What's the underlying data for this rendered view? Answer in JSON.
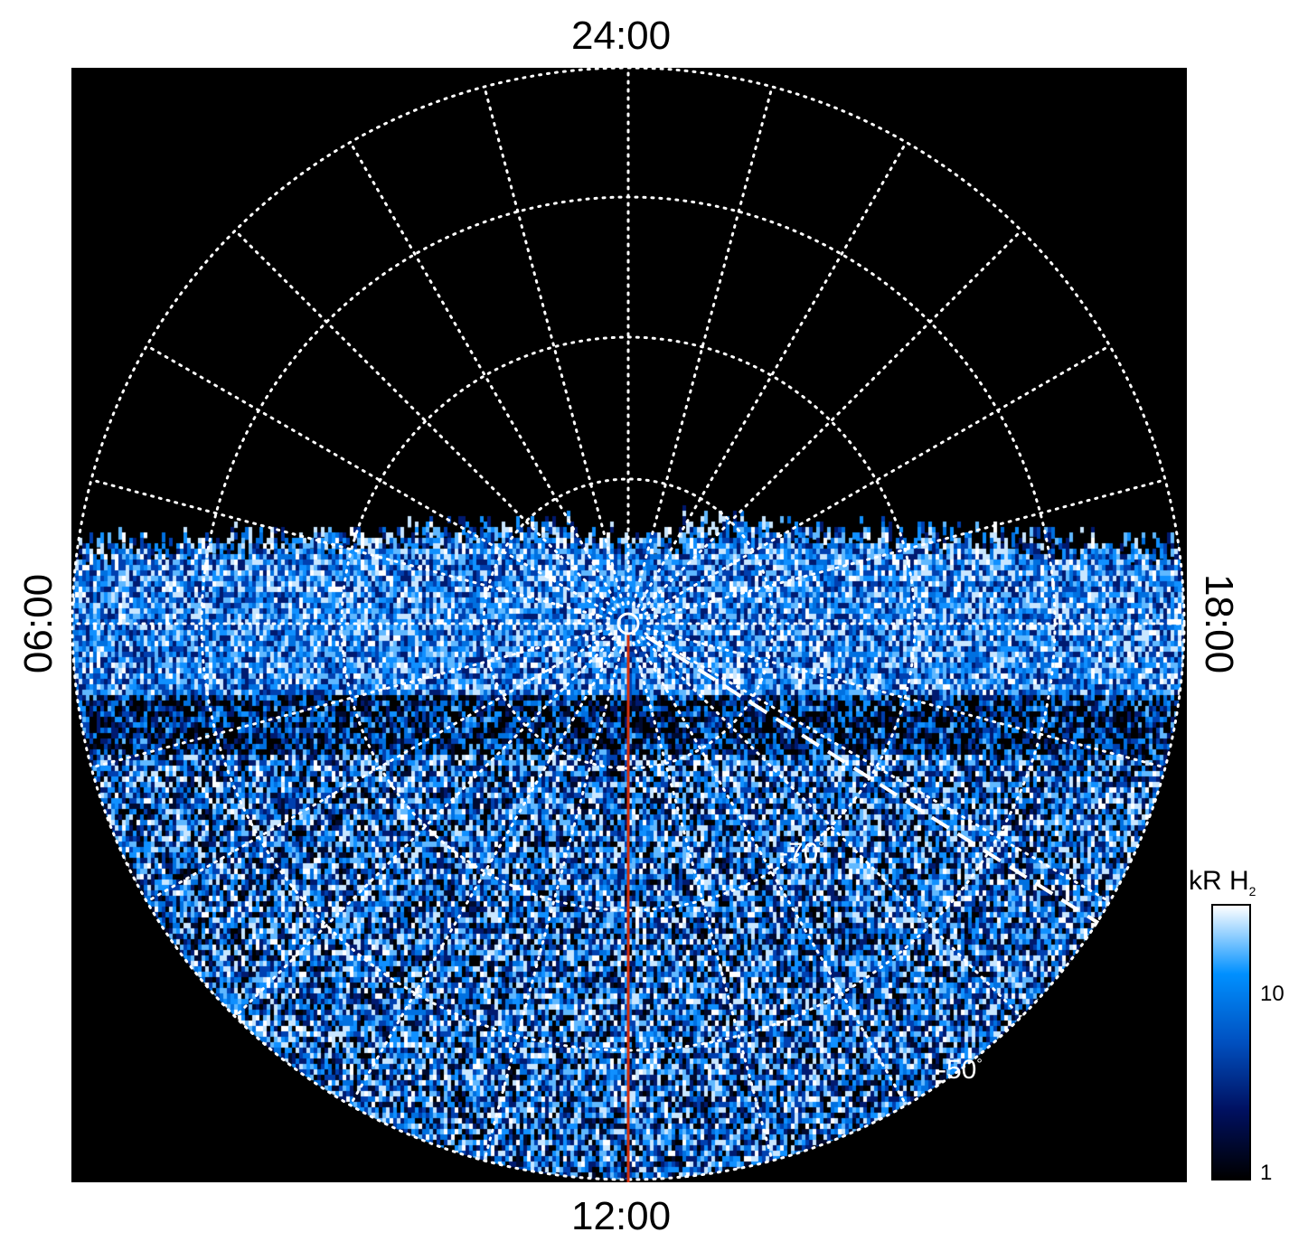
{
  "map": {
    "projection": "polar",
    "local_time_labels": {
      "top": "24:00",
      "bottom": "12:00",
      "left": "06:00",
      "right": "18:00"
    },
    "latitude_labels": [
      "-70",
      "-50"
    ],
    "degree_symbol": "°",
    "colors": {
      "background": "#000000",
      "grid": "#ffffff",
      "meridian_marker": "#d03010",
      "dashed_line": "#ffffff"
    }
  },
  "colorbar": {
    "title": "kR H",
    "title_subscript": "2",
    "ticks": [
      "10",
      "1"
    ],
    "scale": "log",
    "colors": [
      "#000000",
      "#001060",
      "#0050c0",
      "#0090ff",
      "#ffffff"
    ]
  }
}
